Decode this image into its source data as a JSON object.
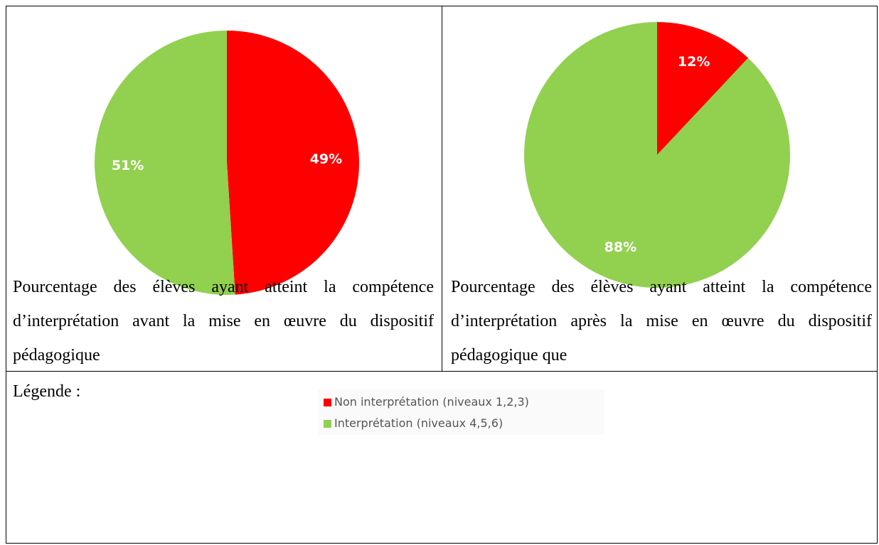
{
  "chart_data": [
    {
      "type": "pie",
      "values": [
        49,
        51
      ],
      "value_labels": [
        "49%",
        "51%"
      ],
      "colors": [
        "#ff0000",
        "#92d050"
      ],
      "caption": "Pourcentage des élèves ayant atteint la compétence d’interprétation avant la mise en œuvre du dispositif pédagogique"
    },
    {
      "type": "pie",
      "values": [
        12,
        88
      ],
      "value_labels": [
        "12%",
        "88%"
      ],
      "colors": [
        "#ff0000",
        "#92d050"
      ],
      "caption": "Pourcentage des élèves ayant atteint la compétence d’interprétation après la mise en œuvre du dispositif pédagogique que"
    }
  ],
  "legend": {
    "title": "Légende :",
    "entries": [
      "Non interprétation (niveaux 1,2,3)",
      "Interprétation (niveaux 4,5,6)"
    ],
    "colors": [
      "#ff0000",
      "#92d050"
    ]
  }
}
